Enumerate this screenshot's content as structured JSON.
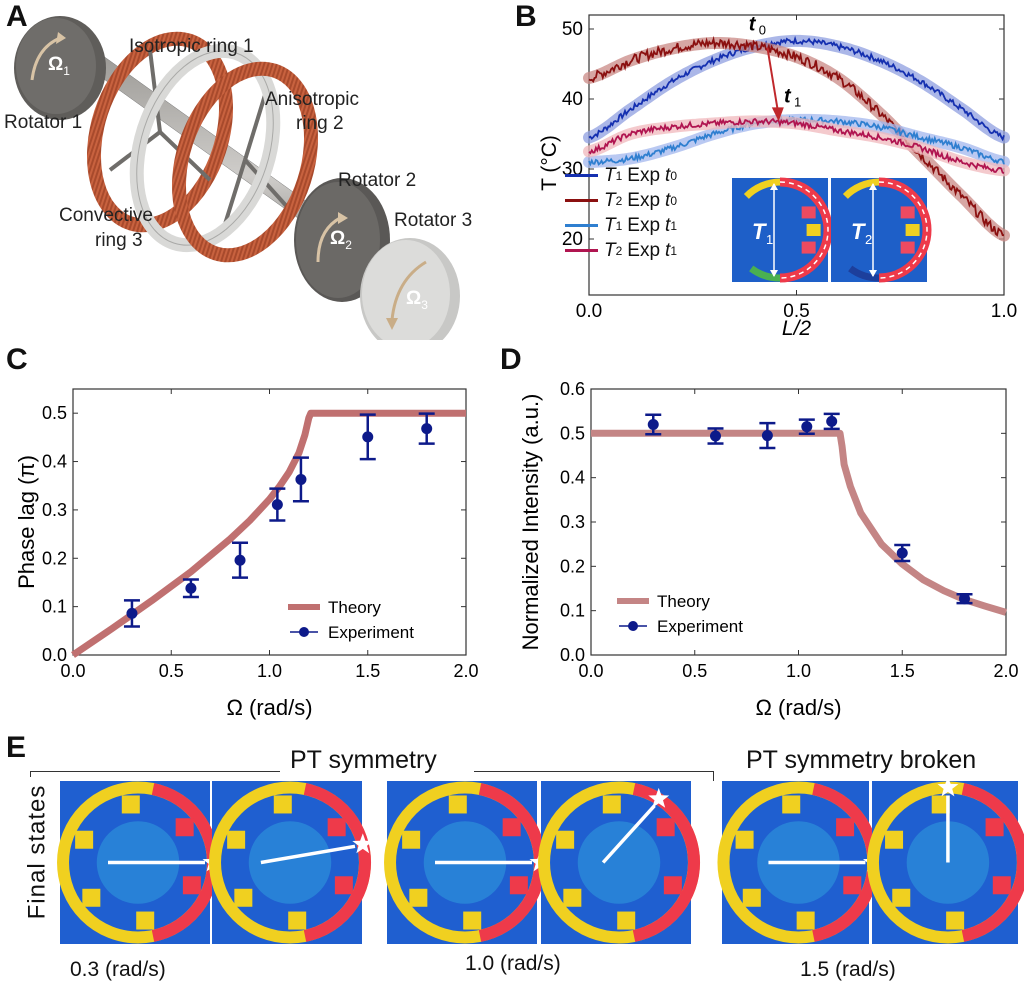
{
  "panel_letters": {
    "a": "A",
    "b": "B",
    "c": "C",
    "d": "D",
    "e": "E"
  },
  "panel_a": {
    "labels": {
      "isotropic": "Isotropic ring 1",
      "anisotropic_1": "Anisotropic",
      "anisotropic_2": "ring 2",
      "rotator1": "Rotator 1",
      "rotator2": "Rotator 2",
      "rotator3": "Rotator 3",
      "convective_1": "Convective",
      "convective_2": "ring 3",
      "omega1": "Ω",
      "omega1_sub": "1",
      "omega2": "Ω",
      "omega2_sub": "2",
      "omega3": "Ω",
      "omega3_sub": "3"
    },
    "colors": {
      "copper": "#c8623f",
      "steel": "#6e6c69",
      "light_steel": "#cfcfcd"
    }
  },
  "chart_data": [
    {
      "id": "B",
      "type": "line",
      "xlabel": "L/2",
      "ylabel": "T (°C)",
      "xlim": [
        0,
        1
      ],
      "ylim": [
        12,
        52
      ],
      "xticks": [
        "0.0",
        "0.5",
        "1.0"
      ],
      "yticks": [
        "20",
        "30",
        "40",
        "50"
      ],
      "annotations": {
        "t0": "t",
        "t0_sub": "0",
        "t1": "t",
        "t1_sub": "1"
      },
      "inset_labels": {
        "T1": "T",
        "T1_sub": "1",
        "T2": "T",
        "T2_sub": "2"
      },
      "legend_position": "lower-left",
      "series": [
        {
          "name": "T1 Exp t0",
          "sym": "T",
          "sub": "1",
          "exp": "Exp",
          "tl": "t",
          "tsub": "0",
          "color": "#1530b0",
          "band": "#8f9fe0",
          "x": [
            0,
            0.1,
            0.2,
            0.3,
            0.4,
            0.5,
            0.6,
            0.7,
            0.8,
            0.9,
            1.0
          ],
          "y": [
            34.5,
            38.5,
            42.5,
            45.5,
            47.5,
            48.3,
            47.5,
            45.5,
            42.5,
            38.5,
            34.5
          ]
        },
        {
          "name": "T2 Exp t0",
          "sym": "T",
          "sub": "2",
          "exp": "Exp",
          "tl": "t",
          "tsub": "0",
          "color": "#8b1010",
          "band": "#c98a86",
          "x": [
            0,
            0.1,
            0.2,
            0.3,
            0.4,
            0.5,
            0.6,
            0.7,
            0.8,
            0.9,
            1.0
          ],
          "y": [
            43.0,
            45.5,
            47.2,
            48.0,
            47.5,
            46.0,
            43.0,
            38.0,
            32.0,
            26.0,
            20.5
          ]
        },
        {
          "name": "T1 Exp t1",
          "sym": "T",
          "sub": "1",
          "exp": "Exp",
          "tl": "t",
          "tsub": "1",
          "color": "#2f7fd0",
          "band": "#a3b7ee",
          "x": [
            0,
            0.1,
            0.2,
            0.3,
            0.4,
            0.5,
            0.6,
            0.7,
            0.8,
            0.9,
            1.0
          ],
          "y": [
            31.0,
            31.5,
            33.0,
            35.0,
            36.5,
            37.0,
            36.8,
            36.0,
            34.5,
            33.0,
            31.0
          ]
        },
        {
          "name": "T2 Exp t1",
          "sym": "T",
          "sub": "2",
          "exp": "Exp",
          "tl": "t",
          "tsub": "1",
          "color": "#b01550",
          "band": "#f0b8bc",
          "x": [
            0,
            0.1,
            0.2,
            0.3,
            0.4,
            0.5,
            0.6,
            0.7,
            0.8,
            0.9,
            1.0
          ],
          "y": [
            32.5,
            35.0,
            36.0,
            36.5,
            36.8,
            36.5,
            35.5,
            34.5,
            33.0,
            31.0,
            29.8
          ]
        }
      ]
    },
    {
      "id": "C",
      "type": "scatter",
      "xlabel": "Ω (rad/s)",
      "ylabel": "Phase lag (π)",
      "xlim": [
        0,
        2
      ],
      "ylim": [
        0,
        0.55
      ],
      "xticks": [
        "0.0",
        "0.5",
        "1.0",
        "1.5",
        "2.0"
      ],
      "yticks": [
        "0.0",
        "0.1",
        "0.2",
        "0.3",
        "0.4",
        "0.5"
      ],
      "legend_position": "lower-right",
      "theory": {
        "name": "Theory",
        "color": "#c07070",
        "x": [
          0,
          0.2,
          0.4,
          0.6,
          0.8,
          0.9,
          1.0,
          1.05,
          1.1,
          1.15,
          1.18,
          1.2,
          1.21,
          2.0
        ],
        "y": [
          0,
          0.055,
          0.112,
          0.172,
          0.24,
          0.278,
          0.322,
          0.348,
          0.378,
          0.418,
          0.455,
          0.49,
          0.5,
          0.5
        ]
      },
      "experiment": {
        "name": "Experiment",
        "color": "#0d1a8a",
        "x": [
          0.3,
          0.6,
          0.85,
          1.04,
          1.16,
          1.5,
          1.8
        ],
        "y": [
          0.086,
          0.138,
          0.196,
          0.311,
          0.363,
          0.451,
          0.468
        ],
        "err": [
          0.027,
          0.018,
          0.036,
          0.033,
          0.045,
          0.046,
          0.031
        ]
      }
    },
    {
      "id": "D",
      "type": "scatter",
      "xlabel": "Ω (rad/s)",
      "ylabel": "Normalized Intensity (a.u.)",
      "xlim": [
        0,
        2
      ],
      "ylim": [
        0,
        0.6
      ],
      "xticks": [
        "0.0",
        "0.5",
        "1.0",
        "1.5",
        "2.0"
      ],
      "yticks": [
        "0.0",
        "0.1",
        "0.2",
        "0.3",
        "0.4",
        "0.5",
        "0.6"
      ],
      "legend_position": "lower-left",
      "theory": {
        "name": "Theory",
        "color": "#c48585",
        "x": [
          0,
          1.2,
          1.21,
          1.22,
          1.25,
          1.3,
          1.4,
          1.5,
          1.6,
          1.7,
          1.8,
          1.9,
          2.0
        ],
        "y": [
          0.5,
          0.5,
          0.47,
          0.43,
          0.38,
          0.32,
          0.25,
          0.205,
          0.17,
          0.145,
          0.125,
          0.11,
          0.096
        ]
      },
      "experiment": {
        "name": "Experiment",
        "color": "#0d1a8a",
        "x": [
          0.3,
          0.6,
          0.85,
          1.04,
          1.16,
          1.5,
          1.8
        ],
        "y": [
          0.52,
          0.494,
          0.495,
          0.515,
          0.527,
          0.23,
          0.127
        ],
        "err": [
          0.022,
          0.017,
          0.028,
          0.016,
          0.017,
          0.018,
          0.01
        ]
      }
    }
  ],
  "panel_e": {
    "row_label": "Final states",
    "group_sym": "PT symmetry",
    "group_broken": "PT symmetry broken",
    "captions": [
      "0.3 (rad/s)",
      "1.0 (rad/s)",
      "1.5 (rad/s)"
    ],
    "thermal_colors": {
      "cold": "#1f5fd0",
      "cool": "#2a8ad8",
      "warm": "#f0d020",
      "hot": "#ee3a4a",
      "hottest": "#f8c0c8"
    }
  }
}
